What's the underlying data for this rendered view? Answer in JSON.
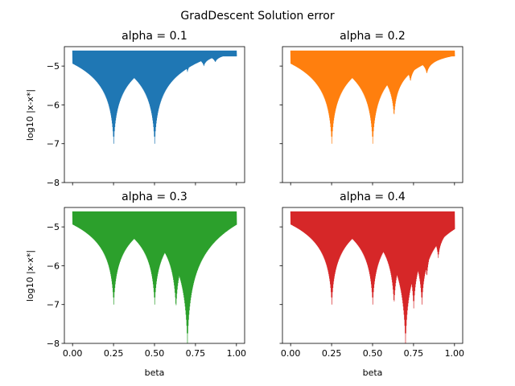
{
  "figure": {
    "suptitle": "GradDescent Solution error"
  },
  "chart_data": {
    "type": "line",
    "shared": {
      "xlabel": "beta",
      "ylabel": "log10 |x-x*|",
      "xlim": [
        -0.05,
        1.05
      ],
      "ylim": [
        -8,
        -4.5
      ],
      "xticks": [
        0.0,
        0.25,
        0.5,
        0.75,
        1.0
      ],
      "xtick_labels": [
        "0.00",
        "0.25",
        "0.50",
        "0.75",
        "1.00"
      ],
      "yticks": [
        -5,
        -6,
        -7,
        -8
      ],
      "ytick_labels": [
        "−5",
        "−6",
        "−7",
        "−8"
      ],
      "x_range": [
        0.0,
        1.0
      ],
      "upper_envelope": -4.6,
      "grid": false,
      "legend": "none"
    },
    "panels": [
      {
        "title": "alpha = 0.1",
        "color": "#1f77b4",
        "resonances": [
          {
            "beta": 0.25,
            "min": -7.0
          },
          {
            "beta": 0.5,
            "min": -7.0
          },
          {
            "beta": 0.7,
            "min": -5.15
          },
          {
            "beta": 0.8,
            "min": -5.0
          },
          {
            "beta": 0.87,
            "min": -4.9
          }
        ]
      },
      {
        "title": "alpha = 0.2",
        "color": "#ff7f0e",
        "resonances": [
          {
            "beta": 0.25,
            "min": -7.0
          },
          {
            "beta": 0.5,
            "min": -7.0
          },
          {
            "beta": 0.63,
            "min": -6.3
          },
          {
            "beta": 0.73,
            "min": -5.4
          },
          {
            "beta": 0.83,
            "min": -5.2
          }
        ]
      },
      {
        "title": "alpha = 0.3",
        "color": "#2ca02c",
        "resonances": [
          {
            "beta": 0.25,
            "min": -7.0
          },
          {
            "beta": 0.5,
            "min": -7.0
          },
          {
            "beta": 0.63,
            "min": -7.1
          },
          {
            "beta": 0.7,
            "min": -8.0
          },
          {
            "beta": 0.8,
            "min": -5.6
          }
        ]
      },
      {
        "title": "alpha = 0.4",
        "color": "#d62728",
        "resonances": [
          {
            "beta": 0.25,
            "min": -7.0
          },
          {
            "beta": 0.5,
            "min": -7.0
          },
          {
            "beta": 0.63,
            "min": -7.0
          },
          {
            "beta": 0.7,
            "min": -8.0
          },
          {
            "beta": 0.75,
            "min": -7.1
          },
          {
            "beta": 0.8,
            "min": -7.0
          },
          {
            "beta": 0.83,
            "min": -6.3
          },
          {
            "beta": 0.9,
            "min": -5.8
          }
        ]
      }
    ]
  }
}
